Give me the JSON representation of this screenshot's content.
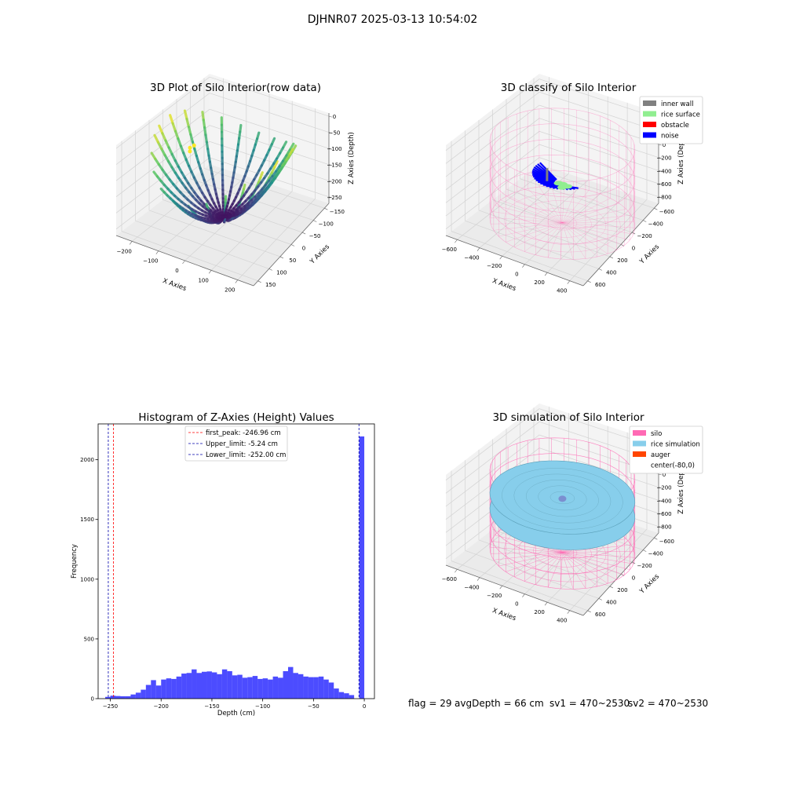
{
  "figure": {
    "title": "DJHNR07 2025-03-13 10:54:02"
  },
  "footer": {
    "flag": "flag = 29",
    "avg_depth": "avgDepth = 66 cm",
    "sv1": "sv1 = 470~2530",
    "sv2": "sv2 = 470~2530"
  },
  "colors": {
    "inner_wall": "#808080",
    "rice_surface": "#90ee90",
    "obstacle": "#ff0000",
    "noise": "#0000ff",
    "silo": "#ff69b4",
    "rice_simulation": "#87ceeb",
    "auger": "#ff4500",
    "histogram_bar": "#0000ff",
    "first_peak_line": "#ff0000",
    "limit_line": "#0000aa"
  },
  "chart_data": [
    {
      "type": "scatter",
      "projection": "3d",
      "title": "3D Plot of Silo Interior(row data)",
      "xlabel": "X Axies",
      "ylabel": "Y Axies",
      "zlabel": "Z Axies (Depth)",
      "x_ticks": [
        -200,
        -100,
        0,
        100,
        200
      ],
      "y_ticks": [
        -150,
        -100,
        -50,
        0,
        50,
        100,
        150
      ],
      "z_ticks": [
        0,
        -50,
        -100,
        -150,
        -200,
        -250
      ],
      "xlim": [
        -260,
        260
      ],
      "ylim": [
        -170,
        170
      ],
      "zlim": [
        -270,
        10
      ],
      "colormap": "viridis",
      "grid": true
    },
    {
      "type": "scatter",
      "projection": "3d",
      "title": "3D classify of Silo Interior",
      "xlabel": "X Axies",
      "ylabel": "Y Axies",
      "zlabel": "Z Axies (Depth)",
      "x_ticks": [
        -600,
        -400,
        -200,
        0,
        200,
        400
      ],
      "y_ticks": [
        -600,
        -400,
        -200,
        0,
        200,
        400,
        600
      ],
      "z_ticks": [
        400,
        200,
        0,
        -200,
        -400,
        -600,
        -800
      ],
      "xlim": [
        -700,
        520
      ],
      "ylim": [
        -680,
        680
      ],
      "zlim": [
        -900,
        480
      ],
      "legend": [
        "inner wall",
        "rice surface",
        "obstacle",
        "noise"
      ],
      "legend_location": "upper right",
      "grid": true
    },
    {
      "type": "bar",
      "title": "Histogram of Z-Axies (Height) Values",
      "xlabel": "Depth (cm)",
      "ylabel": "Frequency",
      "xlim": [
        -262,
        10
      ],
      "ylim": [
        0,
        2300
      ],
      "x_ticks": [
        -250,
        -200,
        -150,
        -100,
        -50,
        0
      ],
      "y_ticks": [
        0,
        500,
        1000,
        1500,
        2000
      ],
      "bin_width": 5,
      "bin_starts": [
        -255,
        -250,
        -245,
        -240,
        -235,
        -230,
        -225,
        -220,
        -215,
        -210,
        -205,
        -200,
        -195,
        -190,
        -185,
        -180,
        -175,
        -170,
        -165,
        -160,
        -155,
        -150,
        -145,
        -140,
        -135,
        -130,
        -125,
        -120,
        -115,
        -110,
        -105,
        -100,
        -95,
        -90,
        -85,
        -80,
        -75,
        -70,
        -65,
        -60,
        -55,
        -50,
        -45,
        -40,
        -35,
        -30,
        -25,
        -20,
        -15,
        -10,
        -5
      ],
      "values": [
        15,
        25,
        22,
        20,
        20,
        35,
        50,
        75,
        115,
        155,
        110,
        160,
        170,
        165,
        185,
        210,
        215,
        245,
        215,
        225,
        228,
        220,
        205,
        245,
        230,
        195,
        200,
        175,
        180,
        190,
        165,
        170,
        160,
        185,
        175,
        230,
        265,
        215,
        205,
        185,
        180,
        180,
        185,
        160,
        135,
        85,
        55,
        45,
        30,
        0,
        2195
      ],
      "vlines": [
        {
          "label": "first_peak: -246.96 cm",
          "x": -246.96,
          "color": "#ff0000"
        },
        {
          "label": "Upper_limit: -5.24 cm",
          "x": -5.24,
          "color": "#0000aa"
        },
        {
          "label": "Lower_limit: -252.00 cm",
          "x": -252.0,
          "color": "#0000aa"
        }
      ],
      "legend_location": "upper center",
      "grid": false
    },
    {
      "type": "area",
      "projection": "3d",
      "title": "3D simulation of Silo Interior",
      "xlabel": "X Axies",
      "ylabel": "Y Axies",
      "zlabel": "Z Axies (Depth)",
      "x_ticks": [
        -600,
        -400,
        -200,
        0,
        200,
        400
      ],
      "y_ticks": [
        -600,
        -400,
        -200,
        0,
        200,
        400,
        600
      ],
      "z_ticks": [
        400,
        200,
        0,
        -200,
        -400,
        -600,
        -800
      ],
      "xlim": [
        -700,
        520
      ],
      "ylim": [
        -680,
        680
      ],
      "zlim": [
        -900,
        480
      ],
      "legend": [
        "silo",
        "rice simulation",
        "auger",
        "center(-80,0)"
      ],
      "legend_location": "upper right",
      "grid": true
    }
  ]
}
